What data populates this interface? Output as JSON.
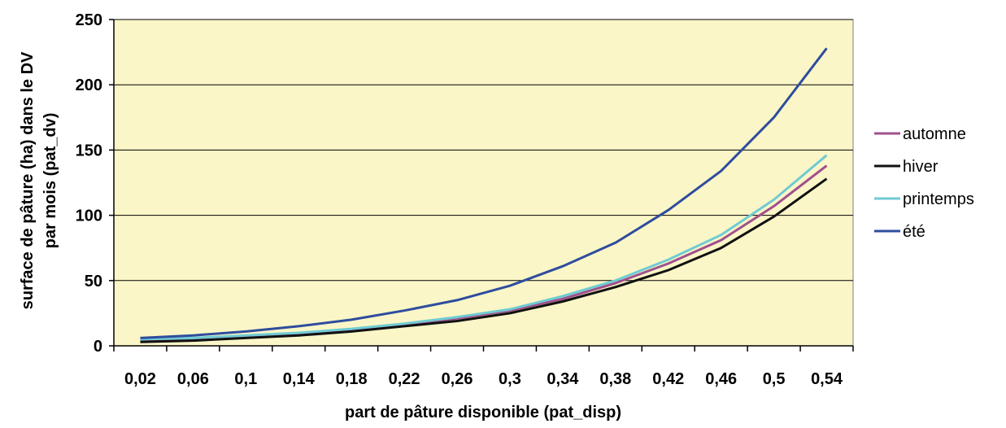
{
  "chart_data": {
    "type": "line",
    "title": "",
    "xlabel": "part de pâture disponible (pat_disp)",
    "ylabel_line1": "surface de pâture (ha) dans le DV",
    "ylabel_line2": "par mois (pat_dv)",
    "categories": [
      "0,02",
      "0,06",
      "0,1",
      "0,14",
      "0,18",
      "0,22",
      "0,26",
      "0,3",
      "0,34",
      "0,38",
      "0,42",
      "0,46",
      "0,5",
      "0,54"
    ],
    "yticks": [
      "0",
      "50",
      "100",
      "150",
      "200",
      "250"
    ],
    "ylim": [
      0,
      250
    ],
    "grid": true,
    "legend_position": "right",
    "plot_background": "#fbf6c7",
    "series": [
      {
        "name": "automne",
        "color": "#a0508c",
        "values": [
          4,
          5,
          7,
          9,
          12,
          16,
          21,
          27,
          36,
          48,
          63,
          81,
          107,
          138
        ]
      },
      {
        "name": "hiver",
        "color": "#111111",
        "values": [
          3,
          4,
          6,
          8,
          11,
          15,
          19,
          25,
          34,
          45,
          58,
          75,
          99,
          128
        ]
      },
      {
        "name": "printemps",
        "color": "#6fcbd3",
        "values": [
          5,
          6,
          8,
          10,
          13,
          17,
          22,
          28,
          38,
          50,
          66,
          85,
          112,
          146
        ]
      },
      {
        "name": "été",
        "color": "#2e4d9e",
        "values": [
          6,
          8,
          11,
          15,
          20,
          27,
          35,
          46,
          61,
          79,
          104,
          134,
          175,
          228
        ]
      }
    ]
  }
}
